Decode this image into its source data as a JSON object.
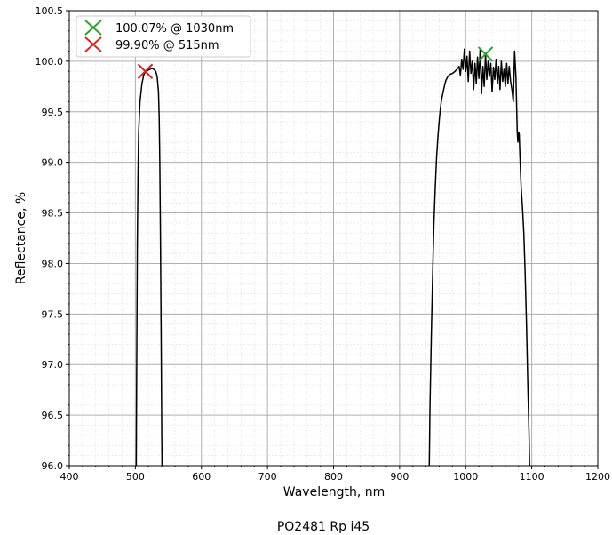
{
  "chart_data": {
    "type": "line",
    "title": "",
    "xlabel": "Wavelength, nm",
    "ylabel": "Reflectance, %",
    "footer": "PO2481 Rp i45",
    "xlim": [
      400,
      1200
    ],
    "ylim": [
      96.0,
      100.5
    ],
    "xticks": [
      400,
      500,
      600,
      700,
      800,
      900,
      1000,
      1100,
      1200
    ],
    "yticks": [
      "96.0",
      "96.5",
      "97.0",
      "97.5",
      "98.0",
      "98.5",
      "99.0",
      "99.5",
      "100.0",
      "100.5"
    ],
    "grid": {
      "major": true,
      "minor": true
    },
    "legend_position": "top-left",
    "series": [
      {
        "color": "#000000",
        "segments": [
          [
            [
              501,
              95.5
            ],
            [
              502,
              97.0
            ],
            [
              503,
              98.2
            ],
            [
              504,
              98.9
            ],
            [
              505,
              99.3
            ],
            [
              507,
              99.6
            ],
            [
              510,
              99.78
            ],
            [
              513,
              99.87
            ],
            [
              516,
              99.9
            ],
            [
              519,
              99.91
            ],
            [
              522,
              99.92
            ],
            [
              525,
              99.93
            ],
            [
              528,
              99.92
            ],
            [
              531,
              99.9
            ],
            [
              533,
              99.85
            ],
            [
              535,
              99.7
            ],
            [
              536,
              99.45
            ],
            [
              537,
              99.0
            ],
            [
              538,
              98.3
            ],
            [
              539,
              97.3
            ],
            [
              540,
              96.3
            ],
            [
              541,
              95.5
            ]
          ],
          [
            [
              944,
              95.5
            ],
            [
              946,
              96.6
            ],
            [
              948,
              97.3
            ],
            [
              950,
              97.9
            ],
            [
              952,
              98.4
            ],
            [
              954,
              98.75
            ],
            [
              956,
              99.05
            ],
            [
              958,
              99.25
            ],
            [
              960,
              99.42
            ],
            [
              962,
              99.55
            ],
            [
              964,
              99.64
            ],
            [
              966,
              99.7
            ],
            [
              968,
              99.76
            ],
            [
              970,
              99.81
            ],
            [
              973,
              99.85
            ],
            [
              976,
              99.87
            ],
            [
              980,
              99.88
            ],
            [
              984,
              99.9
            ],
            [
              988,
              99.93
            ],
            [
              990,
              99.95
            ],
            [
              992,
              99.86
            ],
            [
              994,
              100.02
            ],
            [
              996,
              99.92
            ],
            [
              998,
              100.12
            ],
            [
              1000,
              99.9
            ],
            [
              1002,
              100.05
            ],
            [
              1004,
              99.8
            ],
            [
              1006,
              100.1
            ],
            [
              1008,
              99.88
            ],
            [
              1010,
              100.0
            ],
            [
              1012,
              99.72
            ],
            [
              1014,
              99.98
            ],
            [
              1016,
              99.78
            ],
            [
              1018,
              100.04
            ],
            [
              1020,
              99.83
            ],
            [
              1022,
              100.12
            ],
            [
              1024,
              99.68
            ],
            [
              1026,
              99.95
            ],
            [
              1028,
              99.75
            ],
            [
              1030,
              100.07
            ],
            [
              1032,
              99.82
            ],
            [
              1034,
              100.0
            ],
            [
              1036,
              99.85
            ],
            [
              1038,
              99.98
            ],
            [
              1040,
              99.7
            ],
            [
              1042,
              99.94
            ],
            [
              1044,
              99.82
            ],
            [
              1046,
              100.02
            ],
            [
              1048,
              99.78
            ],
            [
              1050,
              99.95
            ],
            [
              1052,
              99.72
            ],
            [
              1054,
              100.0
            ],
            [
              1056,
              99.8
            ],
            [
              1058,
              99.92
            ],
            [
              1060,
              99.75
            ],
            [
              1062,
              99.98
            ],
            [
              1064,
              99.78
            ],
            [
              1066,
              99.95
            ],
            [
              1068,
              99.8
            ],
            [
              1070,
              99.72
            ],
            [
              1072,
              99.6
            ],
            [
              1074,
              100.1
            ],
            [
              1076,
              99.85
            ],
            [
              1078,
              99.3
            ],
            [
              1079,
              99.2
            ],
            [
              1080,
              99.3
            ],
            [
              1081,
              99.28
            ],
            [
              1082,
              99.1
            ],
            [
              1083,
              98.9
            ],
            [
              1084,
              98.75
            ],
            [
              1086,
              98.55
            ],
            [
              1088,
              98.3
            ],
            [
              1090,
              97.9
            ],
            [
              1092,
              97.4
            ],
            [
              1094,
              96.8
            ],
            [
              1096,
              96.3
            ],
            [
              1098,
              95.5
            ]
          ]
        ]
      }
    ],
    "markers": [
      {
        "x": 1030,
        "y": 100.07,
        "color": "#2ca02c",
        "label": "100.07% @ 1030nm"
      },
      {
        "x": 515,
        "y": 99.9,
        "color": "#d62728",
        "label": "99.90% @ 515nm"
      }
    ]
  }
}
